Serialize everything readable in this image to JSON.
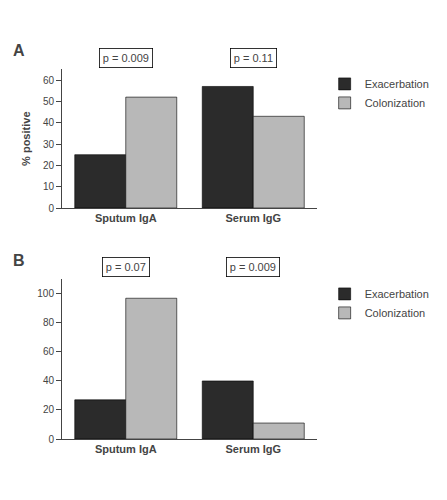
{
  "chart_data": [
    {
      "type": "bar",
      "title": "A",
      "ylabel": "% positive",
      "categories": [
        "Sputum IgA",
        "Serum IgG"
      ],
      "series": [
        {
          "name": "Exacerbation",
          "color": "#2b2b2b",
          "values": [
            25,
            57
          ]
        },
        {
          "name": "Colonization",
          "color": "#b8b8b8",
          "values": [
            52,
            43
          ]
        }
      ],
      "ylim": [
        0,
        65
      ],
      "yticks": [
        0,
        10,
        20,
        30,
        40,
        50,
        60
      ],
      "annotations": [
        {
          "category": "Sputum IgA",
          "text": "p = 0.009"
        },
        {
          "category": "Serum IgG",
          "text": "p = 0.11"
        }
      ],
      "grid": false,
      "legend": "right"
    },
    {
      "type": "bar",
      "title": "B",
      "categories": [
        "Sputum IgA",
        "Serum IgG"
      ],
      "series": [
        {
          "name": "Exacerbation",
          "color": "#2b2b2b",
          "values": [
            27,
            40
          ]
        },
        {
          "name": "Colonization",
          "color": "#b8b8b8",
          "values": [
            97,
            11
          ]
        }
      ],
      "ylim": [
        0,
        110
      ],
      "yticks": [
        0,
        20,
        40,
        60,
        80,
        100
      ],
      "annotations": [
        {
          "category": "Sputum IgA",
          "text": "p = 0.07"
        },
        {
          "category": "Serum IgG",
          "text": "p = 0.009"
        }
      ],
      "grid": false,
      "legend": "right"
    }
  ]
}
